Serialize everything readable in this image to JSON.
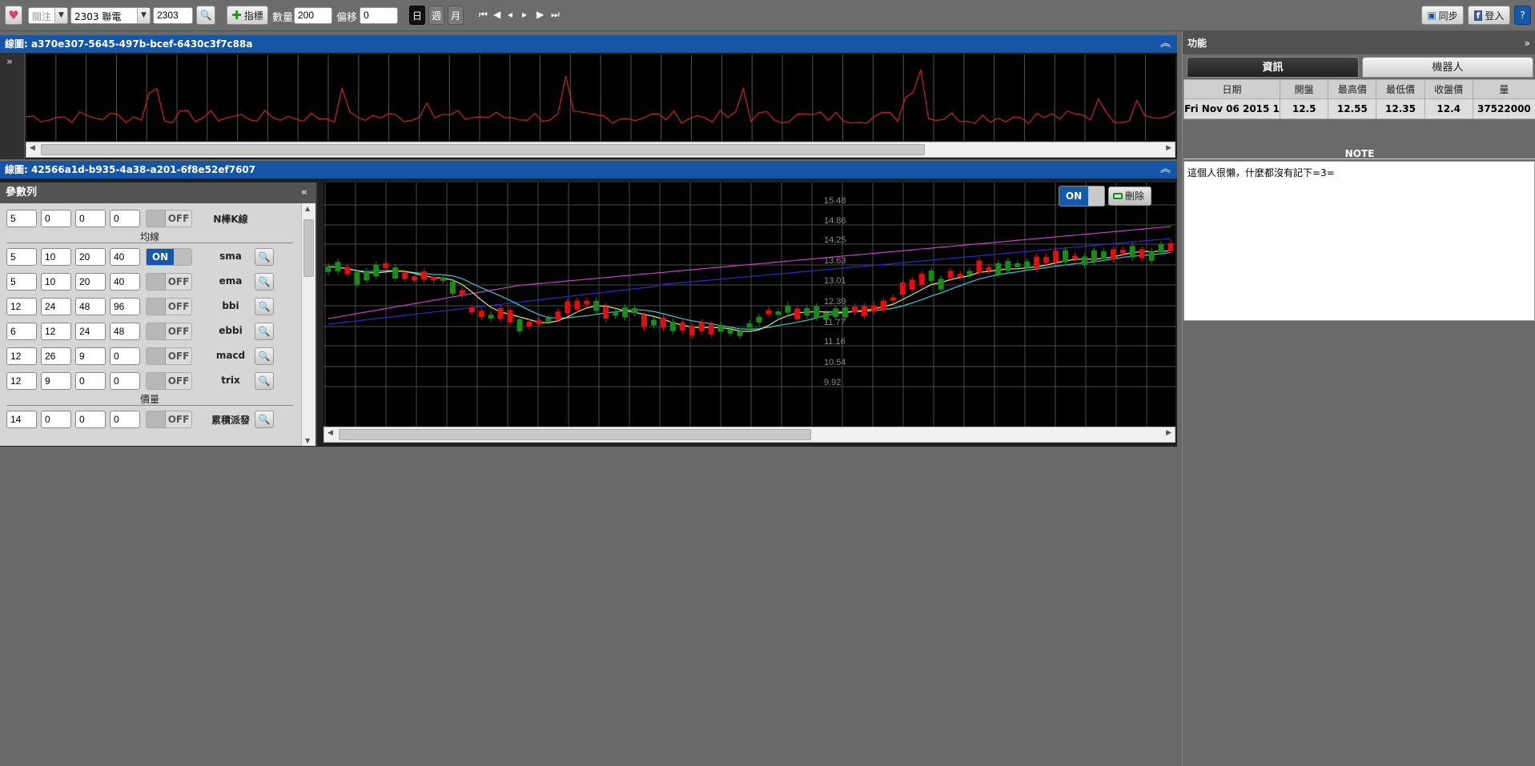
{
  "toolbar": {
    "follow_select": "關注",
    "stock_select": "2303 聯電",
    "stock_code": "2303",
    "indicator_btn": "指標",
    "count_label": "數量",
    "count_value": "200",
    "offset_label": "偏移",
    "offset_value": "0",
    "period_day": "日",
    "period_week": "週",
    "period_month": "月",
    "sync_btn": "同步",
    "login_btn": "登入",
    "help_btn": "?"
  },
  "window1": {
    "title": "線圖: a370e307-5645-497b-bcef-6430c3f7c88a"
  },
  "window2": {
    "title": "線圖: 42566a1d-b935-4a38-a201-6f8e52ef7607"
  },
  "params": {
    "title": "參數列",
    "rows": [
      {
        "v": [
          "5",
          "0",
          "0",
          "0"
        ],
        "state": "OFF",
        "name": "N棒K線",
        "mag": false
      },
      {
        "section": "均線"
      },
      {
        "v": [
          "5",
          "10",
          "20",
          "40"
        ],
        "state": "ON",
        "name": "sma",
        "mag": true
      },
      {
        "v": [
          "5",
          "10",
          "20",
          "40"
        ],
        "state": "OFF",
        "name": "ema",
        "mag": true
      },
      {
        "v": [
          "12",
          "24",
          "48",
          "96"
        ],
        "state": "OFF",
        "name": "bbi",
        "mag": true
      },
      {
        "v": [
          "6",
          "12",
          "24",
          "48"
        ],
        "state": "OFF",
        "name": "ebbi",
        "mag": true
      },
      {
        "v": [
          "12",
          "26",
          "9",
          "0"
        ],
        "state": "OFF",
        "name": "macd",
        "mag": true
      },
      {
        "v": [
          "12",
          "9",
          "0",
          "0"
        ],
        "state": "OFF",
        "name": "trix",
        "mag": true
      },
      {
        "section": "價量"
      },
      {
        "v": [
          "14",
          "0",
          "0",
          "0"
        ],
        "state": "OFF",
        "name": "累積派發",
        "mag": true
      }
    ]
  },
  "chart": {
    "toggle_label": "ON",
    "delete_label": "刪除",
    "y_ticks": [
      "15.48",
      "14.86",
      "14.25",
      "13.63",
      "13.01",
      "12.39",
      "11.77",
      "11.16",
      "10.54",
      "9.92"
    ]
  },
  "side": {
    "title": "功能",
    "tab_info": "資訊",
    "tab_robot": "機器人",
    "table_headers": [
      "日期",
      "開盤",
      "最高價",
      "最低價",
      "收盤價",
      "量"
    ],
    "table_row": [
      "Fri Nov 06 2015 1",
      "12.5",
      "12.55",
      "12.35",
      "12.4",
      "37522000"
    ],
    "note_title": "NOTE",
    "note_text": "這個人很懶，什麼都沒有記下=3="
  },
  "colors": {
    "panel_header": "#1455a8",
    "toggle_on": "#1559ad",
    "up_candle": "#e01010",
    "down_candle": "#1a8a1a"
  }
}
